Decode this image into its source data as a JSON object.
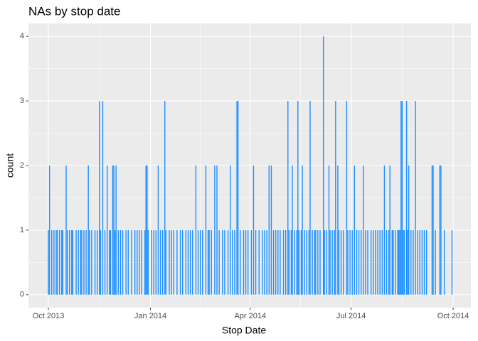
{
  "chart_data": {
    "type": "bar",
    "title": "NAs by stop date",
    "x_label": "Stop Date",
    "y_label": "count",
    "color": "#1E90FF",
    "grid": true,
    "xlim": [
      "2013-09-13",
      "2014-10-17"
    ],
    "xticks": [
      {
        "value": "2013-10-01",
        "label": "Oct 2013"
      },
      {
        "value": "2014-01-01",
        "label": "Jan 2014"
      },
      {
        "value": "2014-04-01",
        "label": "Apr 2014"
      },
      {
        "value": "2014-07-01",
        "label": "Jul 2014"
      },
      {
        "value": "2014-10-01",
        "label": "Oct 2014"
      }
    ],
    "ylim": [
      -0.2,
      4.2
    ],
    "yticks": [
      0,
      1,
      2,
      3,
      4
    ],
    "x": [
      "2013-10-01",
      "2013-10-02",
      "2013-10-04",
      "2013-10-06",
      "2013-10-08",
      "2013-10-09",
      "2013-10-11",
      "2013-10-13",
      "2013-10-14",
      "2013-10-17",
      "2013-10-18",
      "2013-10-20",
      "2013-10-22",
      "2013-10-23",
      "2013-10-26",
      "2013-10-28",
      "2013-10-30",
      "2013-10-31",
      "2013-11-02",
      "2013-11-04",
      "2013-11-06",
      "2013-11-07",
      "2013-11-09",
      "2013-11-12",
      "2013-11-14",
      "2013-11-16",
      "2013-11-17",
      "2013-11-19",
      "2013-11-21",
      "2013-11-23",
      "2013-11-25",
      "2013-11-26",
      "2013-11-28",
      "2013-11-29",
      "2013-11-30",
      "2013-12-01",
      "2013-12-03",
      "2013-12-05",
      "2013-12-07",
      "2013-12-10",
      "2013-12-12",
      "2013-12-15",
      "2013-12-18",
      "2013-12-20",
      "2013-12-22",
      "2013-12-24",
      "2013-12-27",
      "2013-12-28",
      "2013-12-29",
      "2013-12-30",
      "2014-01-02",
      "2014-01-04",
      "2014-01-06",
      "2014-01-08",
      "2014-01-10",
      "2014-01-12",
      "2014-01-14",
      "2014-01-15",
      "2014-01-18",
      "2014-01-20",
      "2014-01-22",
      "2014-01-25",
      "2014-01-28",
      "2014-01-30",
      "2014-02-02",
      "2014-02-04",
      "2014-02-06",
      "2014-02-08",
      "2014-02-11",
      "2014-02-13",
      "2014-02-15",
      "2014-02-17",
      "2014-02-20",
      "2014-02-22",
      "2014-02-23",
      "2014-02-25",
      "2014-02-28",
      "2014-03-02",
      "2014-03-04",
      "2014-03-07",
      "2014-03-09",
      "2014-03-12",
      "2014-03-14",
      "2014-03-16",
      "2014-03-18",
      "2014-03-20",
      "2014-03-21",
      "2014-03-23",
      "2014-03-26",
      "2014-03-28",
      "2014-03-30",
      "2014-04-02",
      "2014-04-04",
      "2014-04-06",
      "2014-04-09",
      "2014-04-12",
      "2014-04-14",
      "2014-04-16",
      "2014-04-18",
      "2014-04-20",
      "2014-04-22",
      "2014-04-24",
      "2014-04-26",
      "2014-04-28",
      "2014-05-01",
      "2014-05-03",
      "2014-05-05",
      "2014-05-06",
      "2014-05-08",
      "2014-05-09",
      "2014-05-11",
      "2014-05-13",
      "2014-05-14",
      "2014-05-15",
      "2014-05-17",
      "2014-05-18",
      "2014-05-20",
      "2014-05-22",
      "2014-05-24",
      "2014-05-25",
      "2014-05-27",
      "2014-05-29",
      "2014-05-30",
      "2014-06-01",
      "2014-06-03",
      "2014-06-06",
      "2014-06-07",
      "2014-06-09",
      "2014-06-11",
      "2014-06-12",
      "2014-06-14",
      "2014-06-16",
      "2014-06-17",
      "2014-06-19",
      "2014-06-20",
      "2014-06-22",
      "2014-06-24",
      "2014-06-27",
      "2014-06-28",
      "2014-06-30",
      "2014-07-02",
      "2014-07-04",
      "2014-07-06",
      "2014-07-08",
      "2014-07-10",
      "2014-07-12",
      "2014-07-14",
      "2014-07-16",
      "2014-07-19",
      "2014-07-21",
      "2014-07-23",
      "2014-07-25",
      "2014-07-27",
      "2014-07-29",
      "2014-07-31",
      "2014-08-02",
      "2014-08-04",
      "2014-08-05",
      "2014-08-07",
      "2014-08-08",
      "2014-08-10",
      "2014-08-12",
      "2014-08-13",
      "2014-08-14",
      "2014-08-15",
      "2014-08-16",
      "2014-08-17",
      "2014-08-18",
      "2014-08-20",
      "2014-08-21",
      "2014-08-22",
      "2014-08-24",
      "2014-08-26",
      "2014-08-28",
      "2014-08-30",
      "2014-09-01",
      "2014-09-03",
      "2014-09-05",
      "2014-09-07",
      "2014-09-12",
      "2014-09-13",
      "2014-09-15",
      "2014-09-19",
      "2014-09-20",
      "2014-09-23",
      "2014-09-30"
    ],
    "values": [
      1,
      2,
      1,
      1,
      1,
      1,
      1,
      1,
      1,
      2,
      1,
      1,
      1,
      1,
      1,
      1,
      1,
      1,
      1,
      1,
      2,
      1,
      1,
      1,
      1,
      3,
      1,
      3,
      1,
      2,
      1,
      1,
      2,
      2,
      1,
      2,
      1,
      1,
      1,
      1,
      1,
      1,
      1,
      1,
      1,
      1,
      1,
      2,
      2,
      1,
      1,
      1,
      1,
      2,
      1,
      1,
      3,
      1,
      1,
      1,
      1,
      1,
      1,
      1,
      1,
      1,
      1,
      1,
      2,
      1,
      1,
      1,
      2,
      1,
      1,
      1,
      2,
      2,
      1,
      1,
      1,
      1,
      2,
      1,
      1,
      3,
      3,
      1,
      1,
      1,
      1,
      1,
      2,
      1,
      1,
      1,
      1,
      1,
      2,
      2,
      1,
      1,
      1,
      1,
      1,
      1,
      3,
      1,
      1,
      2,
      1,
      1,
      3,
      1,
      1,
      2,
      1,
      1,
      1,
      3,
      1,
      1,
      1,
      1,
      1,
      4,
      1,
      1,
      2,
      1,
      1,
      1,
      3,
      2,
      1,
      1,
      1,
      3,
      1,
      1,
      1,
      2,
      1,
      1,
      1,
      2,
      1,
      1,
      1,
      1,
      1,
      1,
      1,
      1,
      2,
      1,
      1,
      2,
      1,
      1,
      1,
      1,
      1,
      1,
      3,
      3,
      1,
      1,
      3,
      1,
      2,
      1,
      1,
      3,
      1,
      1,
      1,
      1,
      1,
      2,
      2,
      1,
      2,
      2,
      1,
      1
    ]
  }
}
